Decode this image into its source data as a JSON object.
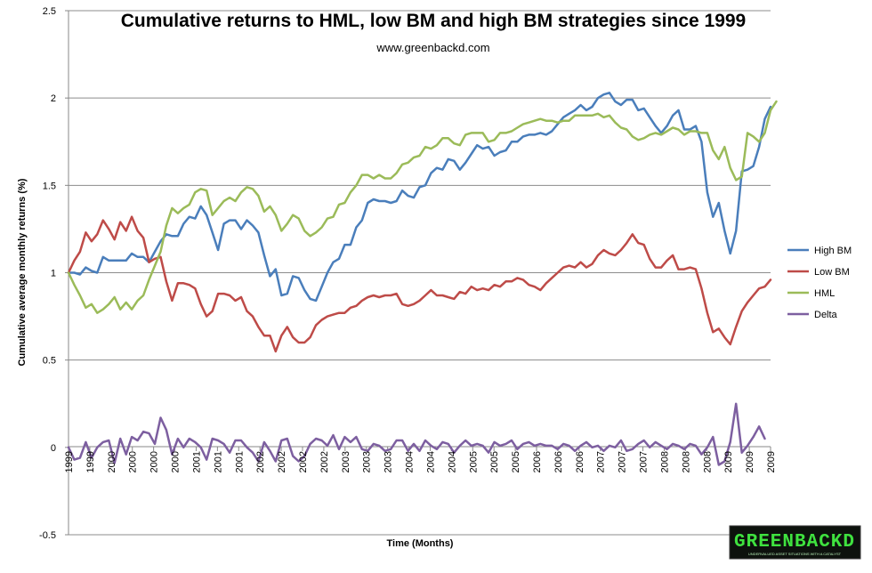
{
  "chart_data": {
    "type": "line",
    "title": "Cumulative returns to HML, low BM and high BM strategies since 1999",
    "subtitle": "www.greenbackd.com",
    "xlabel": "Time (Months)",
    "ylabel": "Cumulative average  monthly returns (%)",
    "ylim": [
      -0.5,
      2.5
    ],
    "yticks": [
      "2.5",
      "2",
      "1.5",
      "1",
      "0.5",
      "0",
      "-0.5"
    ],
    "ytick_values": [
      2.5,
      2,
      1.5,
      1,
      0.5,
      0,
      -0.5
    ],
    "xticks": [
      "1999",
      "1999",
      "2000",
      "2000",
      "2000",
      "2000",
      "2001",
      "2001",
      "2001",
      "2002",
      "2002",
      "2002",
      "2002",
      "2003",
      "2003",
      "2003",
      "2004",
      "2004",
      "2004",
      "2005",
      "2005",
      "2005",
      "2006",
      "2006",
      "2006",
      "2007",
      "2007",
      "2007",
      "2008",
      "2008",
      "2008",
      "2009",
      "2009",
      "2009"
    ],
    "grid": true,
    "legend_position": "right",
    "series": [
      {
        "name": "High BM",
        "color": "#4a7ebb",
        "values": [
          1.0,
          1.0,
          0.99,
          1.03,
          1.01,
          1.0,
          1.09,
          1.07,
          1.07,
          1.07,
          1.07,
          1.11,
          1.09,
          1.09,
          1.06,
          1.12,
          1.18,
          1.22,
          1.21,
          1.21,
          1.28,
          1.32,
          1.31,
          1.38,
          1.33,
          1.23,
          1.13,
          1.28,
          1.3,
          1.3,
          1.25,
          1.3,
          1.27,
          1.23,
          1.1,
          0.98,
          1.02,
          0.87,
          0.88,
          0.98,
          0.97,
          0.9,
          0.85,
          0.84,
          0.92,
          1.0,
          1.06,
          1.08,
          1.16,
          1.16,
          1.26,
          1.3,
          1.4,
          1.42,
          1.41,
          1.41,
          1.4,
          1.41,
          1.47,
          1.44,
          1.43,
          1.49,
          1.5,
          1.57,
          1.6,
          1.59,
          1.65,
          1.64,
          1.59,
          1.63,
          1.68,
          1.73,
          1.71,
          1.72,
          1.67,
          1.69,
          1.7,
          1.75,
          1.75,
          1.78,
          1.79,
          1.79,
          1.8,
          1.79,
          1.81,
          1.85,
          1.89,
          1.91,
          1.93,
          1.96,
          1.93,
          1.95,
          2.0,
          2.02,
          2.03,
          1.98,
          1.96,
          1.99,
          1.99,
          1.93,
          1.94,
          1.89,
          1.84,
          1.8,
          1.84,
          1.9,
          1.93,
          1.82,
          1.82,
          1.84,
          1.75,
          1.46,
          1.32,
          1.4,
          1.24,
          1.11,
          1.24,
          1.58,
          1.59,
          1.61,
          1.72,
          1.88,
          1.95
        ]
      },
      {
        "name": "Low BM",
        "color": "#be4b48",
        "values": [
          1.0,
          1.07,
          1.12,
          1.23,
          1.18,
          1.22,
          1.3,
          1.25,
          1.19,
          1.29,
          1.24,
          1.32,
          1.24,
          1.2,
          1.06,
          1.08,
          1.09,
          0.95,
          0.84,
          0.94,
          0.94,
          0.93,
          0.91,
          0.82,
          0.75,
          0.78,
          0.88,
          0.88,
          0.87,
          0.84,
          0.86,
          0.78,
          0.75,
          0.69,
          0.64,
          0.64,
          0.55,
          0.64,
          0.69,
          0.63,
          0.6,
          0.6,
          0.63,
          0.7,
          0.73,
          0.75,
          0.76,
          0.77,
          0.77,
          0.8,
          0.81,
          0.84,
          0.86,
          0.87,
          0.86,
          0.87,
          0.87,
          0.88,
          0.82,
          0.81,
          0.82,
          0.84,
          0.87,
          0.9,
          0.87,
          0.87,
          0.86,
          0.85,
          0.89,
          0.88,
          0.92,
          0.9,
          0.91,
          0.9,
          0.93,
          0.92,
          0.95,
          0.95,
          0.97,
          0.96,
          0.93,
          0.92,
          0.9,
          0.94,
          0.97,
          1.0,
          1.03,
          1.04,
          1.03,
          1.06,
          1.03,
          1.05,
          1.1,
          1.13,
          1.11,
          1.1,
          1.13,
          1.17,
          1.22,
          1.17,
          1.16,
          1.08,
          1.03,
          1.03,
          1.07,
          1.1,
          1.02,
          1.02,
          1.03,
          1.02,
          0.91,
          0.77,
          0.66,
          0.68,
          0.63,
          0.59,
          0.69,
          0.78,
          0.83,
          0.87,
          0.91,
          0.92,
          0.96
        ]
      },
      {
        "name": "HML",
        "color": "#9bbb59",
        "values": [
          1.0,
          0.93,
          0.87,
          0.8,
          0.82,
          0.77,
          0.79,
          0.82,
          0.86,
          0.79,
          0.83,
          0.79,
          0.84,
          0.87,
          0.96,
          1.04,
          1.12,
          1.27,
          1.37,
          1.34,
          1.37,
          1.39,
          1.46,
          1.48,
          1.47,
          1.33,
          1.37,
          1.41,
          1.43,
          1.41,
          1.46,
          1.49,
          1.48,
          1.44,
          1.35,
          1.38,
          1.33,
          1.24,
          1.28,
          1.33,
          1.31,
          1.24,
          1.21,
          1.23,
          1.26,
          1.31,
          1.32,
          1.39,
          1.4,
          1.46,
          1.5,
          1.56,
          1.56,
          1.54,
          1.56,
          1.54,
          1.54,
          1.57,
          1.62,
          1.63,
          1.66,
          1.67,
          1.72,
          1.71,
          1.73,
          1.77,
          1.77,
          1.74,
          1.73,
          1.79,
          1.8,
          1.8,
          1.8,
          1.75,
          1.76,
          1.8,
          1.8,
          1.81,
          1.83,
          1.85,
          1.86,
          1.87,
          1.88,
          1.87,
          1.87,
          1.86,
          1.87,
          1.87,
          1.9,
          1.9,
          1.9,
          1.9,
          1.91,
          1.89,
          1.9,
          1.86,
          1.83,
          1.82,
          1.78,
          1.76,
          1.77,
          1.79,
          1.8,
          1.79,
          1.81,
          1.83,
          1.82,
          1.79,
          1.81,
          1.81,
          1.8,
          1.8,
          1.7,
          1.65,
          1.72,
          1.6,
          1.53,
          1.55,
          1.8,
          1.78,
          1.75,
          1.8,
          1.93,
          1.98
        ]
      },
      {
        "name": "Delta",
        "color": "#7d5fa0",
        "values": [
          0.0,
          -0.07,
          -0.06,
          0.03,
          -0.06,
          0.0,
          0.03,
          0.04,
          -0.09,
          0.05,
          -0.04,
          0.06,
          0.04,
          0.09,
          0.08,
          0.02,
          0.17,
          0.1,
          -0.04,
          0.05,
          0.0,
          0.05,
          0.03,
          0.0,
          -0.07,
          0.05,
          0.04,
          0.02,
          -0.03,
          0.04,
          0.04,
          0.0,
          -0.03,
          -0.08,
          0.03,
          -0.02,
          -0.08,
          0.04,
          0.05,
          -0.05,
          -0.08,
          -0.05,
          0.02,
          0.05,
          0.04,
          0.01,
          0.07,
          -0.01,
          0.06,
          0.03,
          0.06,
          -0.01,
          -0.02,
          0.02,
          0.01,
          -0.02,
          -0.01,
          0.04,
          0.04,
          -0.02,
          0.02,
          -0.02,
          0.04,
          0.01,
          -0.01,
          0.03,
          0.02,
          -0.03,
          0.01,
          0.04,
          0.01,
          0.02,
          0.01,
          -0.03,
          0.03,
          0.01,
          0.02,
          0.04,
          -0.01,
          0.02,
          0.03,
          0.01,
          0.02,
          0.01,
          0.01,
          -0.01,
          0.02,
          0.01,
          -0.02,
          0.01,
          0.03,
          0.0,
          0.01,
          -0.02,
          0.01,
          0.0,
          0.04,
          -0.02,
          -0.01,
          0.02,
          0.04,
          0.0,
          0.03,
          0.01,
          -0.01,
          0.02,
          0.01,
          -0.01,
          0.02,
          0.01,
          -0.04,
          0.0,
          0.06,
          -0.1,
          -0.08,
          0.03,
          0.25,
          -0.03,
          0.01,
          0.06,
          0.12,
          0.05
        ]
      }
    ]
  },
  "logo": {
    "text": "GREENBACKD",
    "tagline": "UNDERVALUED ASSET SITUATIONS WITH A CATALYST"
  }
}
